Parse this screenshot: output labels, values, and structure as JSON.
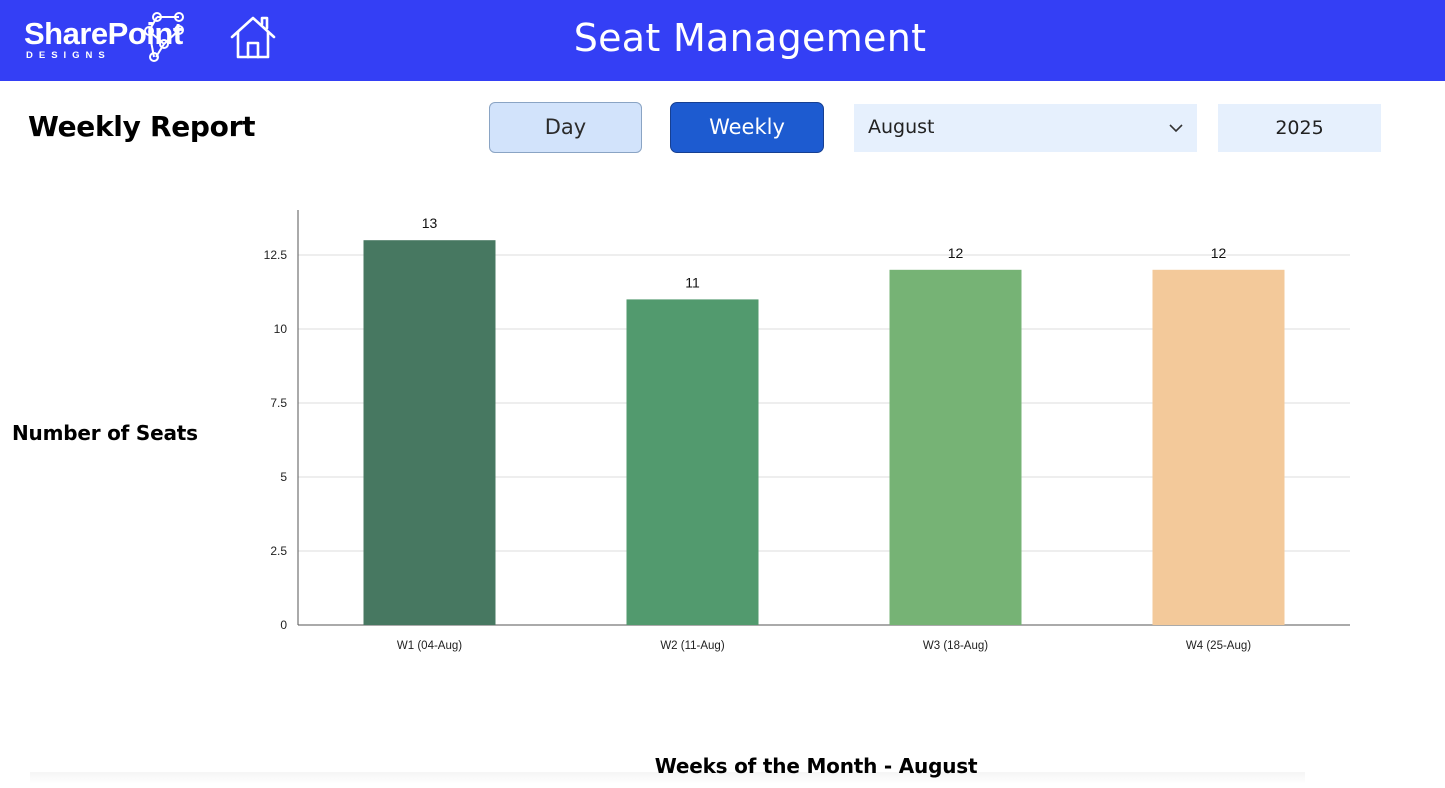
{
  "header": {
    "logo": {
      "word": "SharePoint",
      "sub": "DESIGNS"
    },
    "home_icon": "home-icon",
    "title": "Seat Management",
    "bg_color": "#343ff5"
  },
  "toolbar": {
    "report_title": "Weekly Report",
    "day_label": "Day",
    "weekly_label": "Weekly",
    "active_view": "Weekly",
    "month_value": "August",
    "month_chevron_icon": "chevron-down-icon",
    "year_value": "2025"
  },
  "chart_data": {
    "type": "bar",
    "title": "",
    "xlabel": "Weeks of the Month - August",
    "ylabel": "Number of Seats",
    "categories": [
      "W1 (04-Aug)",
      "W2 (11-Aug)",
      "W3 (18-Aug)",
      "W4 (25-Aug)"
    ],
    "values": [
      13,
      11,
      12,
      12
    ],
    "data_labels": [
      "13",
      "11",
      "12",
      "12"
    ],
    "bar_colors": [
      "#477861",
      "#529a6e",
      "#76b375",
      "#f3c99a"
    ],
    "ylim": [
      0,
      14
    ],
    "yticks": [
      0,
      2.5,
      5,
      7.5,
      10,
      12.5
    ],
    "ytick_labels": [
      "0",
      "2.5",
      "5",
      "7.5",
      "10",
      "12.5"
    ],
    "grid": true,
    "legend": "none"
  }
}
